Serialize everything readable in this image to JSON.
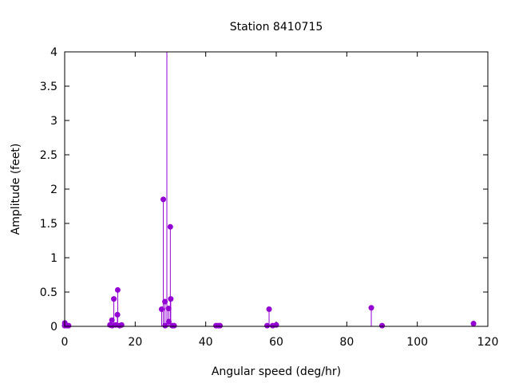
{
  "chart_data": {
    "type": "scatter",
    "style": "impulses-with-points",
    "title": "Station 8410715",
    "xlabel": "Angular speed (deg/hr)",
    "ylabel": "Amplitude (feet)",
    "xlim": [
      0,
      120
    ],
    "ylim": [
      0,
      4
    ],
    "x_ticks": [
      0,
      20,
      40,
      60,
      80,
      100,
      120
    ],
    "y_ticks": [
      0,
      0.5,
      1,
      1.5,
      2,
      2.5,
      3,
      3.5,
      4
    ],
    "x_tick_labels": [
      "0",
      "20",
      "40",
      "60",
      "80",
      "100",
      "120"
    ],
    "y_tick_labels": [
      "0",
      "0.5",
      "1",
      "1.5",
      "2",
      "2.5",
      "3",
      "3.5",
      "4"
    ],
    "grid": false,
    "color": "#9400d3",
    "series": [
      {
        "points": [
          {
            "x": 0.0,
            "y": 0.01
          },
          {
            "x": 0.04,
            "y": 0.05
          },
          {
            "x": 0.08,
            "y": 0.02
          },
          {
            "x": 0.54,
            "y": 0.01
          },
          {
            "x": 1.1,
            "y": 0.01
          },
          {
            "x": 12.85,
            "y": 0.02
          },
          {
            "x": 13.4,
            "y": 0.09
          },
          {
            "x": 13.47,
            "y": 0.01
          },
          {
            "x": 13.94,
            "y": 0.4
          },
          {
            "x": 14.5,
            "y": 0.02
          },
          {
            "x": 14.96,
            "y": 0.17
          },
          {
            "x": 15.04,
            "y": 0.53
          },
          {
            "x": 15.59,
            "y": 0.01
          },
          {
            "x": 16.14,
            "y": 0.02
          },
          {
            "x": 27.5,
            "y": 0.25
          },
          {
            "x": 27.97,
            "y": 1.85
          },
          {
            "x": 28.44,
            "y": 0.36
          },
          {
            "x": 28.51,
            "y": 0.01
          },
          {
            "x": 28.98,
            "y": 4.0
          },
          {
            "x": 29.46,
            "y": 0.26
          },
          {
            "x": 29.53,
            "y": 0.07
          },
          {
            "x": 29.96,
            "y": 1.45
          },
          {
            "x": 30.08,
            "y": 0.4
          },
          {
            "x": 30.5,
            "y": 0.01
          },
          {
            "x": 31.02,
            "y": 0.01
          },
          {
            "x": 42.93,
            "y": 0.01
          },
          {
            "x": 43.48,
            "y": 0.01
          },
          {
            "x": 44.03,
            "y": 0.01
          },
          {
            "x": 57.42,
            "y": 0.01
          },
          {
            "x": 57.97,
            "y": 0.25
          },
          {
            "x": 58.98,
            "y": 0.01
          },
          {
            "x": 60.0,
            "y": 0.02
          },
          {
            "x": 86.95,
            "y": 0.27
          },
          {
            "x": 90.0,
            "y": 0.01
          },
          {
            "x": 115.94,
            "y": 0.04
          }
        ]
      }
    ]
  }
}
